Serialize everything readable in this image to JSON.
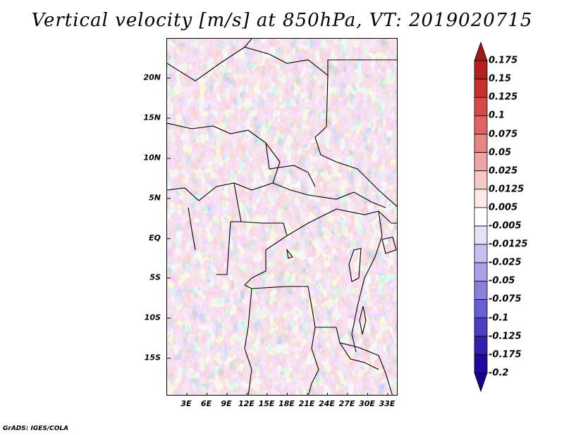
{
  "title": "Vertical velocity [m/s] at 850hPa, VT: 2019020715",
  "credit": "GrADS: IGES/COLA",
  "map": {
    "region": "Central Africa",
    "lat_labels": [
      "20N",
      "15N",
      "10N",
      "5N",
      "EQ",
      "5S",
      "10S",
      "15S"
    ],
    "lon_labels": [
      "3E",
      "6E",
      "9E",
      "12E",
      "15E",
      "18E",
      "21E",
      "24E",
      "27E",
      "30E",
      "33E"
    ],
    "lon_range": [
      0,
      35
    ],
    "lat_range": [
      -20,
      25
    ]
  },
  "colorbar": {
    "labels": [
      "0.175",
      "0.15",
      "0.125",
      "0.1",
      "0.075",
      "0.05",
      "0.025",
      "0.0125",
      "0.005",
      "-0.005",
      "-0.0125",
      "-0.025",
      "-0.05",
      "-0.075",
      "-0.1",
      "-0.125",
      "-0.175",
      "-0.2"
    ],
    "colors": [
      "#a01818",
      "#b42020",
      "#c83030",
      "#d84848",
      "#e06464",
      "#e88484",
      "#f0a4a4",
      "#f8c8c8",
      "#fde8e8",
      "#ffffff",
      "#e4e0f8",
      "#c8c0f0",
      "#a8a0e8",
      "#8880dc",
      "#6860d0",
      "#4c40c0",
      "#3020b0",
      "#2008a0",
      "#1a0090"
    ]
  }
}
